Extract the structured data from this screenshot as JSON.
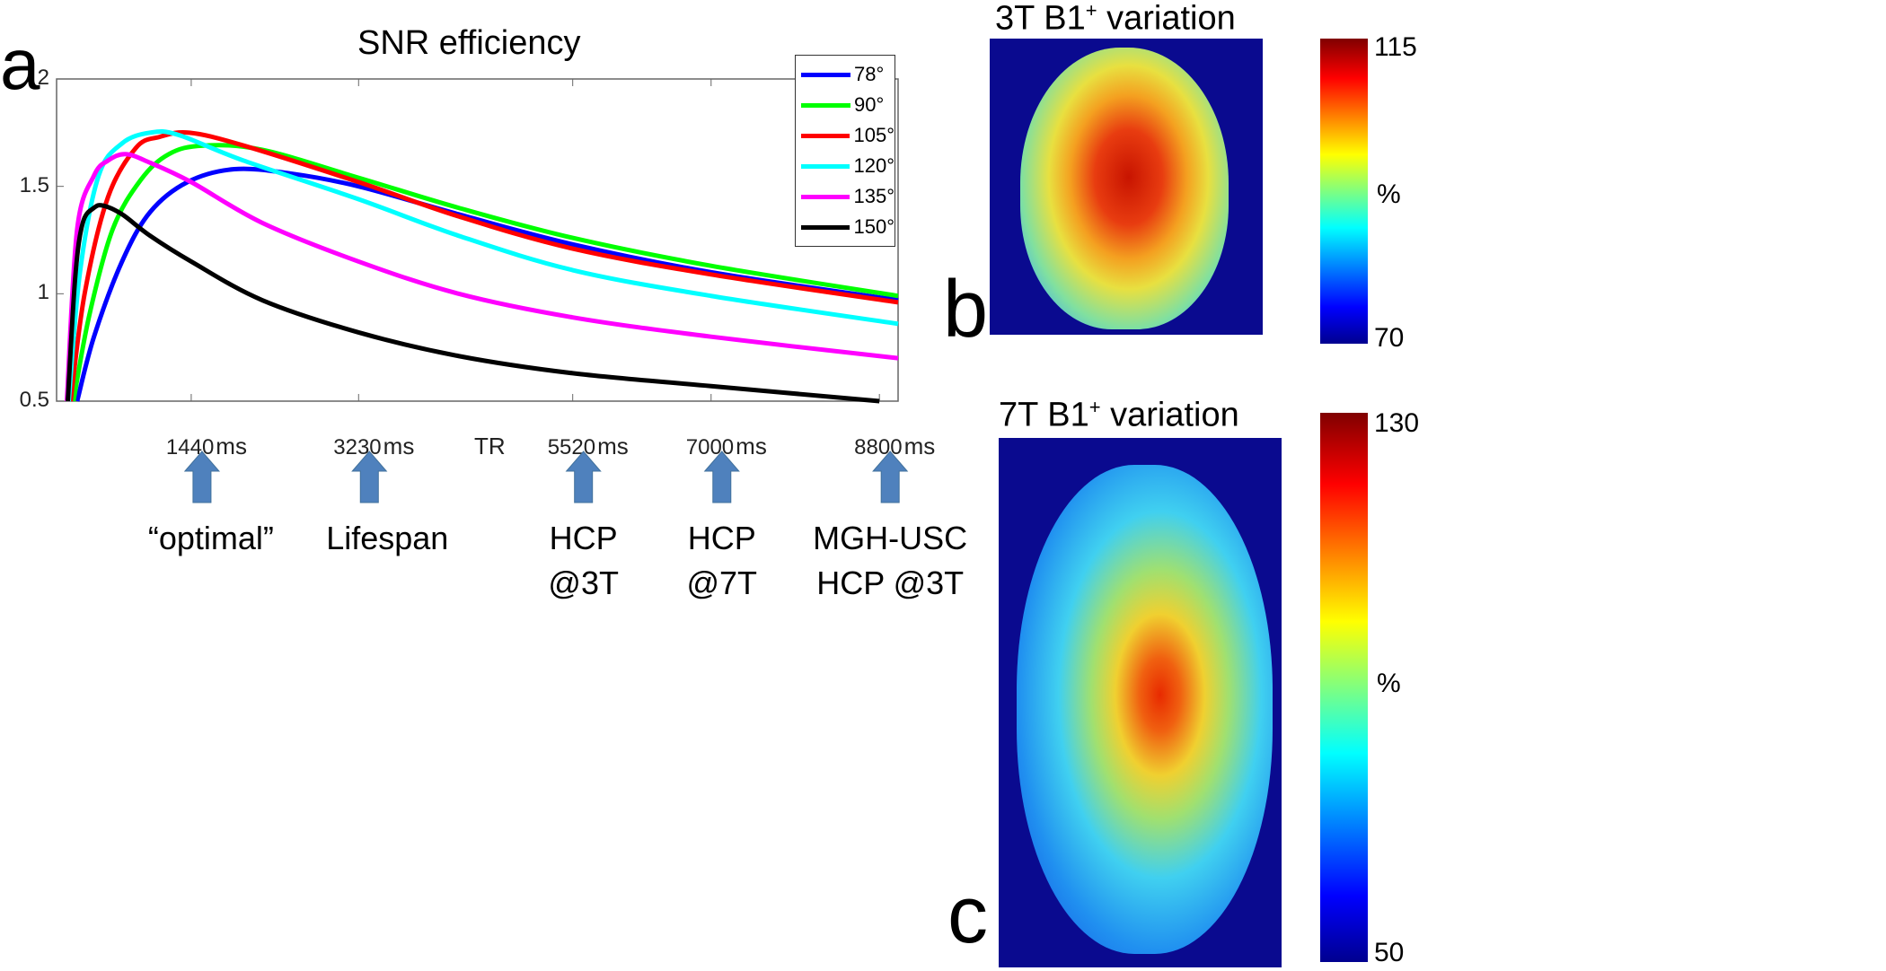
{
  "panels": {
    "a": "a",
    "b": "b",
    "c": "c"
  },
  "chart_data": [
    {
      "type": "line",
      "title": "SNR efficiency",
      "xlabel": "TR",
      "ylabel": "",
      "xlim": [
        0,
        9000
      ],
      "ylim": [
        0.5,
        2
      ],
      "yticks": [
        "0.5",
        "1",
        "1.5",
        "2"
      ],
      "ytick_values": [
        0.5,
        1,
        1.5,
        2
      ],
      "xticks": [
        {
          "value": 1440,
          "label": "1440",
          "unit": "ms"
        },
        {
          "value": 3230,
          "label": "3230",
          "unit": "ms"
        },
        {
          "value": 5520,
          "label": "5520",
          "unit": "ms"
        },
        {
          "value": 7000,
          "label": "7000",
          "unit": "ms"
        },
        {
          "value": 8800,
          "label": "8800",
          "unit": "ms"
        }
      ],
      "legend_position": "top-right",
      "series": [
        {
          "name": "78°",
          "color": "#0000ff",
          "points": [
            [
              220,
              0.5
            ],
            [
              400,
              0.8
            ],
            [
              700,
              1.15
            ],
            [
              1000,
              1.38
            ],
            [
              1400,
              1.52
            ],
            [
              1900,
              1.58
            ],
            [
              2500,
              1.56
            ],
            [
              3230,
              1.5
            ],
            [
              4300,
              1.37
            ],
            [
              5520,
              1.23
            ],
            [
              7000,
              1.1
            ],
            [
              9000,
              0.97
            ]
          ]
        },
        {
          "name": "90°",
          "color": "#00ff00",
          "points": [
            [
              180,
              0.5
            ],
            [
              350,
              0.9
            ],
            [
              600,
              1.3
            ],
            [
              900,
              1.53
            ],
            [
              1200,
              1.65
            ],
            [
              1570,
              1.69
            ],
            [
              2200,
              1.67
            ],
            [
              3230,
              1.54
            ],
            [
              4300,
              1.4
            ],
            [
              5520,
              1.26
            ],
            [
              7000,
              1.13
            ],
            [
              9000,
              0.99
            ]
          ]
        },
        {
          "name": "105°",
          "color": "#ff0000",
          "points": [
            [
              150,
              0.5
            ],
            [
              300,
              1.0
            ],
            [
              550,
              1.45
            ],
            [
              850,
              1.68
            ],
            [
              1100,
              1.73
            ],
            [
              1420,
              1.75
            ],
            [
              2000,
              1.69
            ],
            [
              3230,
              1.52
            ],
            [
              4300,
              1.36
            ],
            [
              5520,
              1.21
            ],
            [
              7000,
              1.09
            ],
            [
              9000,
              0.96
            ]
          ]
        },
        {
          "name": "120°",
          "color": "#00ffff",
          "points": [
            [
              130,
              0.5
            ],
            [
              250,
              1.1
            ],
            [
              450,
              1.55
            ],
            [
              700,
              1.7
            ],
            [
              1000,
              1.75
            ],
            [
              1300,
              1.74
            ],
            [
              2000,
              1.62
            ],
            [
              3230,
              1.44
            ],
            [
              4300,
              1.27
            ],
            [
              5520,
              1.11
            ],
            [
              7000,
              0.99
            ],
            [
              9000,
              0.86
            ]
          ]
        },
        {
          "name": "135°",
          "color": "#ff00ff",
          "points": [
            [
              110,
              0.5
            ],
            [
              220,
              1.3
            ],
            [
              400,
              1.55
            ],
            [
              550,
              1.62
            ],
            [
              740,
              1.65
            ],
            [
              1000,
              1.61
            ],
            [
              1440,
              1.52
            ],
            [
              2200,
              1.33
            ],
            [
              3230,
              1.15
            ],
            [
              4300,
              1.0
            ],
            [
              5520,
              0.89
            ],
            [
              7000,
              0.8
            ],
            [
              9000,
              0.7
            ]
          ]
        },
        {
          "name": "150°",
          "color": "#000000",
          "points": [
            [
              120,
              0.5
            ],
            [
              200,
              1.08
            ],
            [
              280,
              1.33
            ],
            [
              400,
              1.4
            ],
            [
              500,
              1.41
            ],
            [
              700,
              1.37
            ],
            [
              1000,
              1.27
            ],
            [
              1440,
              1.15
            ],
            [
              2200,
              0.97
            ],
            [
              3230,
              0.82
            ],
            [
              4300,
              0.71
            ],
            [
              5520,
              0.63
            ],
            [
              7000,
              0.57
            ],
            [
              8800,
              0.5
            ]
          ]
        }
      ]
    },
    {
      "type": "heatmap",
      "title": "3T B1",
      "title_sup": "+",
      "title_rest": " variation",
      "colorbar": {
        "max": "115",
        "min": "70",
        "unit": "%"
      }
    },
    {
      "type": "heatmap",
      "title": "7T B1",
      "title_sup": "+",
      "title_rest": " variation",
      "colorbar": {
        "max": "130",
        "min": "50",
        "unit": "%"
      }
    }
  ],
  "annotations": [
    {
      "tr": 1440,
      "lines": [
        "“optimal”"
      ]
    },
    {
      "tr": 3230,
      "lines": [
        "Lifespan"
      ]
    },
    {
      "tr": 5520,
      "lines": [
        "HCP",
        "@3T"
      ]
    },
    {
      "tr": 7000,
      "lines": [
        "HCP",
        "@7T"
      ]
    },
    {
      "tr": 8800,
      "lines": [
        "MGH-USC",
        "HCP @3T"
      ]
    }
  ],
  "arrow_color": "#4f81bd"
}
